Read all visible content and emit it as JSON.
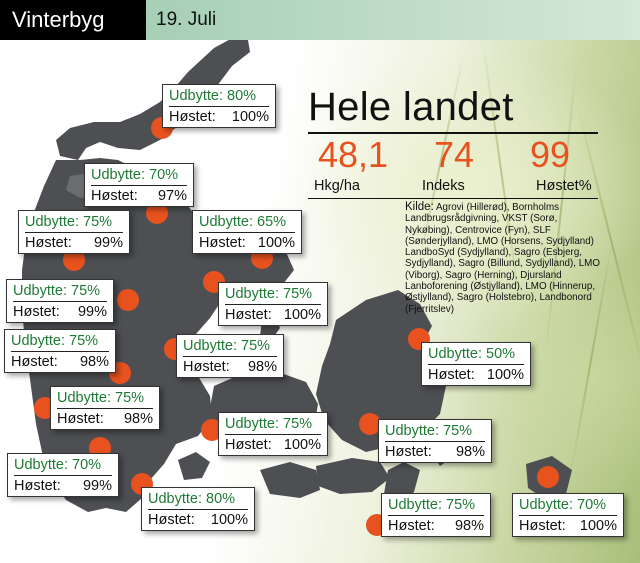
{
  "header": {
    "tag": "Vinterbyg",
    "date": "19. Juli"
  },
  "summary": {
    "title": "Hele landet",
    "hkg_value": "48,1",
    "indeks_value": "74",
    "hostet_value": "99",
    "hkg_label": "Hkg/ha",
    "indeks_label": "Indeks",
    "hostet_label": "Høstet%"
  },
  "source": {
    "heading": "Kilde:",
    "text": "Agrovi (Hillerød), Bornholms Landbrugsrådgivning, VKST (Sorø, Nykøbing), Centrovice (Fyn), SLF (Sønderjylland), LMO (Horsens, Sydjylland) LandboSyd (Sydjylland), Sagro (Esbjerg, Sydjylland), Sagro (Billund, Sydjylland), LMO (Viborg), Sagro (Herning), Djursland Lanboforening (Østjylland), LMO (Hinnerup, Østjylland), Sagro (Holstebro), Landbonord (Fjerritslev)"
  },
  "colors": {
    "accent": "#e8521f",
    "green_text": "#1e7a35",
    "land": "#4d4f53",
    "header_band": "#a6cfb5"
  },
  "regions": [
    {
      "udbytte": "Udbytte: 80%",
      "hostet_label": "Høstet:",
      "hostet_value": "100%"
    },
    {
      "udbytte": "Udbytte: 70%",
      "hostet_label": "Høstet:",
      "hostet_value": "97%"
    },
    {
      "udbytte": "Udbytte: 75%",
      "hostet_label": "Høstet:",
      "hostet_value": "99%"
    },
    {
      "udbytte": "Udbytte: 65%",
      "hostet_label": "Høstet:",
      "hostet_value": "100%"
    },
    {
      "udbytte": "Udbytte: 75%",
      "hostet_label": "Høstet:",
      "hostet_value": "99%"
    },
    {
      "udbytte": "Udbytte: 75%",
      "hostet_label": "Høstet:",
      "hostet_value": "100%"
    },
    {
      "udbytte": "Udbytte: 75%",
      "hostet_label": "Høstet:",
      "hostet_value": "98%"
    },
    {
      "udbytte": "Udbytte: 75%",
      "hostet_label": "Høstet:",
      "hostet_value": "98%"
    },
    {
      "udbytte": "Udbytte: 50%",
      "hostet_label": "Høstet:",
      "hostet_value": "100%"
    },
    {
      "udbytte": "Udbytte: 75%",
      "hostet_label": "Høstet:",
      "hostet_value": "98%"
    },
    {
      "udbytte": "Udbytte: 75%",
      "hostet_label": "Høstet:",
      "hostet_value": "100%"
    },
    {
      "udbytte": "Udbytte: 75%",
      "hostet_label": "Høstet:",
      "hostet_value": "98%"
    },
    {
      "udbytte": "Udbytte: 70%",
      "hostet_label": "Høstet:",
      "hostet_value": "99%"
    },
    {
      "udbytte": "Udbytte: 80%",
      "hostet_label": "Høstet:",
      "hostet_value": "100%"
    },
    {
      "udbytte": "Udbytte: 75%",
      "hostet_label": "Høstet:",
      "hostet_value": "98%"
    },
    {
      "udbytte": "Udbytte: 70%",
      "hostet_label": "Høstet:",
      "hostet_value": "100%"
    }
  ]
}
